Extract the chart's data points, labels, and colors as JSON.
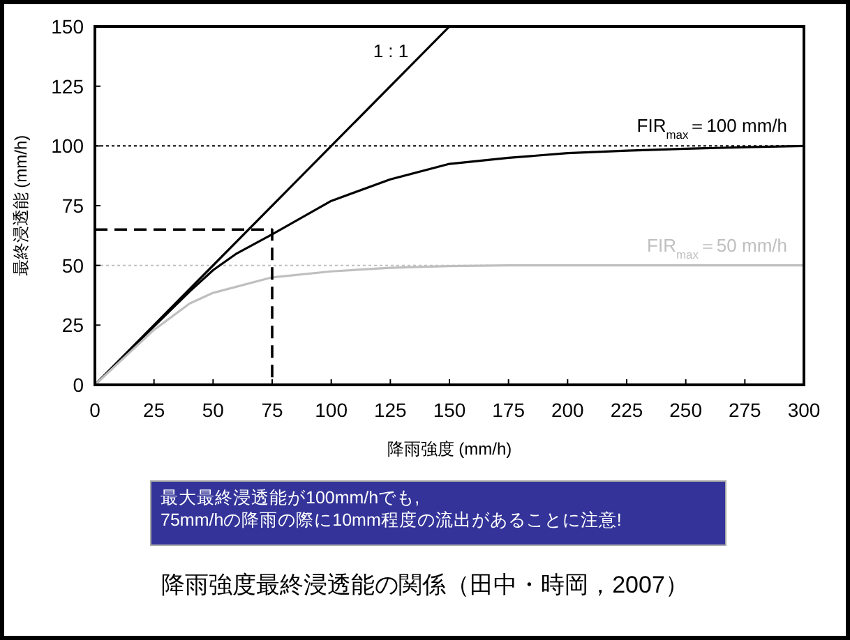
{
  "chart_data": {
    "type": "line",
    "title": "降雨強度最終浸透能の関係（田中・時岡，2007）",
    "xlabel": "降雨強度 (mm/h)",
    "ylabel": "最終浸透能 (mm/h)",
    "xlim": [
      0,
      300
    ],
    "ylim": [
      0,
      150
    ],
    "xticks": [
      0,
      25,
      50,
      75,
      100,
      125,
      150,
      175,
      200,
      225,
      250,
      275,
      300
    ],
    "yticks": [
      0,
      25,
      50,
      75,
      100,
      125,
      150
    ],
    "series": [
      {
        "name": "1 : 1",
        "color": "#000000",
        "x": [
          0,
          150
        ],
        "values": [
          0,
          150
        ]
      },
      {
        "color": "#000000",
        "x": [
          0,
          25,
          40,
          50,
          60,
          75,
          100,
          125,
          150,
          175,
          200,
          225,
          250,
          275,
          300
        ],
        "values": [
          0,
          24.5,
          39,
          48,
          55,
          63,
          77,
          86,
          92.5,
          95,
          97,
          98,
          98.8,
          99.5,
          100
        ]
      },
      {
        "color": "#bfbfbf",
        "x": [
          0,
          25,
          40,
          50,
          75,
          100,
          125,
          150,
          175,
          200,
          250,
          300
        ],
        "values": [
          0,
          23,
          34,
          38.5,
          45,
          47.5,
          49,
          49.7,
          50,
          50,
          50,
          50
        ]
      },
      {
        "color": "#000000",
        "line_style": "dashed",
        "x": [
          0,
          75,
          75
        ],
        "values": [
          65,
          65,
          0
        ]
      }
    ],
    "ref_lines": [
      {
        "axis": "y",
        "value": 100,
        "label": "FIR$_{max}$＝100 mm/h",
        "color": "#000000",
        "line_style": "dotted"
      },
      {
        "axis": "y",
        "value": 50,
        "label": "FIR$_{max}$＝50 mm/h",
        "color": "#bfbfbf",
        "line_style": "dotted"
      }
    ],
    "annotations": [
      "最大最終浸透能が100mm/hでも,",
      "75mm/hの降雨の際に10mm程度の流出があることに注意!"
    ]
  }
}
